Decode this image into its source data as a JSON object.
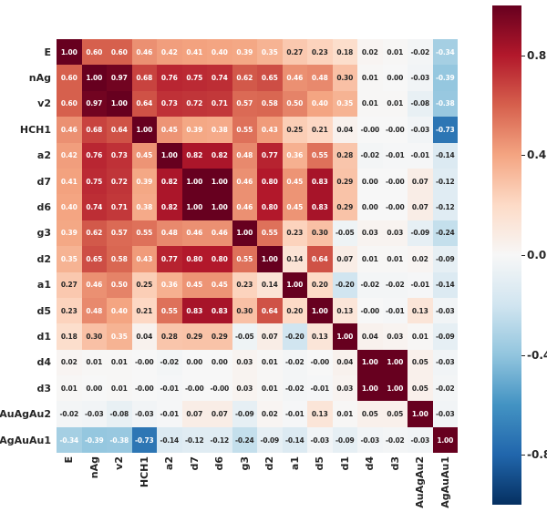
{
  "chart_data": {
    "type": "heatmap",
    "title": "",
    "xlabel": "",
    "ylabel": "",
    "labels": [
      "E",
      "nAg",
      "v2",
      "HCH1",
      "a2",
      "d7",
      "d6",
      "g3",
      "d2",
      "a1",
      "d5",
      "d1",
      "d4",
      "d3",
      "AuAgAu2",
      "AgAuAu1"
    ],
    "matrix": [
      [
        "1.00",
        "0.60",
        "0.60",
        "0.46",
        "0.42",
        "0.41",
        "0.40",
        "0.39",
        "0.35",
        "0.27",
        "0.23",
        "0.18",
        "0.02",
        "0.01",
        "-0.02",
        "-0.34"
      ],
      [
        "0.60",
        "1.00",
        "0.97",
        "0.68",
        "0.76",
        "0.75",
        "0.74",
        "0.62",
        "0.65",
        "0.46",
        "0.48",
        "0.30",
        "0.01",
        "0.00",
        "-0.03",
        "-0.39"
      ],
      [
        "0.60",
        "0.97",
        "1.00",
        "0.64",
        "0.73",
        "0.72",
        "0.71",
        "0.57",
        "0.58",
        "0.50",
        "0.40",
        "0.35",
        "0.01",
        "0.01",
        "-0.08",
        "-0.38"
      ],
      [
        "0.46",
        "0.68",
        "0.64",
        "1.00",
        "0.45",
        "0.39",
        "0.38",
        "0.55",
        "0.43",
        "0.25",
        "0.21",
        "0.04",
        "-0.00",
        "-0.00",
        "-0.03",
        "-0.73"
      ],
      [
        "0.42",
        "0.76",
        "0.73",
        "0.45",
        "1.00",
        "0.82",
        "0.82",
        "0.48",
        "0.77",
        "0.36",
        "0.55",
        "0.28",
        "-0.02",
        "-0.01",
        "-0.01",
        "-0.14"
      ],
      [
        "0.41",
        "0.75",
        "0.72",
        "0.39",
        "0.82",
        "1.00",
        "1.00",
        "0.46",
        "0.80",
        "0.45",
        "0.83",
        "0.29",
        "0.00",
        "-0.00",
        "0.07",
        "-0.12"
      ],
      [
        "0.40",
        "0.74",
        "0.71",
        "0.38",
        "0.82",
        "1.00",
        "1.00",
        "0.46",
        "0.80",
        "0.45",
        "0.83",
        "0.29",
        "0.00",
        "-0.00",
        "0.07",
        "-0.12"
      ],
      [
        "0.39",
        "0.62",
        "0.57",
        "0.55",
        "0.48",
        "0.46",
        "0.46",
        "1.00",
        "0.55",
        "0.23",
        "0.30",
        "-0.05",
        "0.03",
        "0.03",
        "-0.09",
        "-0.24"
      ],
      [
        "0.35",
        "0.65",
        "0.58",
        "0.43",
        "0.77",
        "0.80",
        "0.80",
        "0.55",
        "1.00",
        "0.14",
        "0.64",
        "0.07",
        "0.01",
        "0.01",
        "0.02",
        "-0.09"
      ],
      [
        "0.27",
        "0.46",
        "0.50",
        "0.25",
        "0.36",
        "0.45",
        "0.45",
        "0.23",
        "0.14",
        "1.00",
        "0.20",
        "-0.20",
        "-0.02",
        "-0.02",
        "-0.01",
        "-0.14"
      ],
      [
        "0.23",
        "0.48",
        "0.40",
        "0.21",
        "0.55",
        "0.83",
        "0.83",
        "0.30",
        "0.64",
        "0.20",
        "1.00",
        "0.13",
        "-0.00",
        "-0.01",
        "0.13",
        "-0.03"
      ],
      [
        "0.18",
        "0.30",
        "0.35",
        "0.04",
        "0.28",
        "0.29",
        "0.29",
        "-0.05",
        "0.07",
        "-0.20",
        "0.13",
        "1.00",
        "0.04",
        "0.03",
        "0.01",
        "-0.09"
      ],
      [
        "0.02",
        "0.01",
        "0.01",
        "-0.00",
        "-0.02",
        "0.00",
        "0.00",
        "0.03",
        "0.01",
        "-0.02",
        "-0.00",
        "0.04",
        "1.00",
        "1.00",
        "0.05",
        "-0.03"
      ],
      [
        "0.01",
        "0.00",
        "0.01",
        "-0.00",
        "-0.01",
        "-0.00",
        "-0.00",
        "0.03",
        "0.01",
        "-0.02",
        "-0.01",
        "0.03",
        "1.00",
        "1.00",
        "0.05",
        "-0.02"
      ],
      [
        "-0.02",
        "-0.03",
        "-0.08",
        "-0.03",
        "-0.01",
        "0.07",
        "0.07",
        "-0.09",
        "0.02",
        "-0.01",
        "0.13",
        "0.01",
        "0.05",
        "0.05",
        "1.00",
        "-0.03"
      ],
      [
        "-0.34",
        "-0.39",
        "-0.38",
        "-0.73",
        "-0.14",
        "-0.12",
        "-0.12",
        "-0.24",
        "-0.09",
        "-0.14",
        "-0.03",
        "-0.09",
        "-0.03",
        "-0.02",
        "-0.03",
        "1.00"
      ]
    ],
    "vmin": -1,
    "vmax": 1,
    "colormap": "RdBu_r",
    "colormap_anchors": [
      "#053061",
      "#2166ac",
      "#4393c3",
      "#92c5de",
      "#d1e5f0",
      "#f7f7f7",
      "#fddbc7",
      "#f4a582",
      "#d6604d",
      "#b2182b",
      "#67001f"
    ],
    "colorbar_ticks": [
      "0.8",
      "0.4",
      "0.0",
      "-0.4",
      "-0.8"
    ],
    "colorbar_tick_values": [
      0.8,
      0.4,
      0.0,
      -0.4,
      -0.8
    ],
    "legend_position": "right",
    "grid": false,
    "annotation_text_dark": "#262626",
    "annotation_text_light": "#ffffff"
  }
}
